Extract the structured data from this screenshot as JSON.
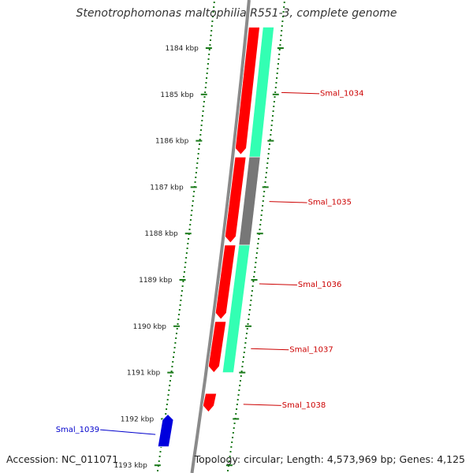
{
  "title": "Stenotrophomonas maltophilia R551-3, complete genome",
  "footer": {
    "accession": "Accession: NC_011071",
    "topology": "Topology: circular; Length: 4,573,969 bp; Genes: 4,125"
  },
  "colors": {
    "forward_cds": "#ff0000",
    "reverse_cds": "#0000dd",
    "forward_feature": "#33ffb3",
    "gray_feature": "#777777",
    "axis": "#8a8a8a",
    "kbp_tick": "#1a7a1a",
    "label_forward": "#cc0000",
    "label_reverse": "#0000cc"
  },
  "ruler": {
    "unit": "kbp",
    "ticks": [
      {
        "kb": 1184,
        "label": "1184 kbp"
      },
      {
        "kb": 1185,
        "label": "1185 kbp"
      },
      {
        "kb": 1186,
        "label": "1186 kbp"
      },
      {
        "kb": 1187,
        "label": "1187 kbp"
      },
      {
        "kb": 1188,
        "label": "1188 kbp"
      },
      {
        "kb": 1189,
        "label": "1189 kbp"
      },
      {
        "kb": 1190,
        "label": "1190 kbp"
      },
      {
        "kb": 1191,
        "label": "1191 kbp"
      },
      {
        "kb": 1192,
        "label": "1192 kbp"
      },
      {
        "kb": 1193,
        "label": "1193 kbp"
      }
    ]
  },
  "genes": [
    {
      "name": "Smal_1034",
      "strand": "+",
      "start_kb": 1183.55,
      "end_kb": 1186.3
    },
    {
      "name": "Smal_1035",
      "strand": "+",
      "start_kb": 1186.35,
      "end_kb": 1188.2
    },
    {
      "name": "Smal_1036",
      "strand": "+",
      "start_kb": 1188.25,
      "end_kb": 1189.85
    },
    {
      "name": "Smal_1037",
      "strand": "+",
      "start_kb": 1189.9,
      "end_kb": 1191.0
    },
    {
      "name": "Smal_1038",
      "strand": "+",
      "start_kb": 1191.45,
      "end_kb": 1191.85
    },
    {
      "name": "Smal_1039",
      "strand": "-",
      "start_kb": 1191.9,
      "end_kb": 1192.6
    }
  ],
  "features": [
    {
      "color": "forward_feature",
      "start_kb": 1183.55,
      "end_kb": 1186.35
    },
    {
      "color": "gray_feature",
      "start_kb": 1186.35,
      "end_kb": 1188.25
    },
    {
      "color": "forward_feature",
      "start_kb": 1188.25,
      "end_kb": 1191.0
    }
  ]
}
